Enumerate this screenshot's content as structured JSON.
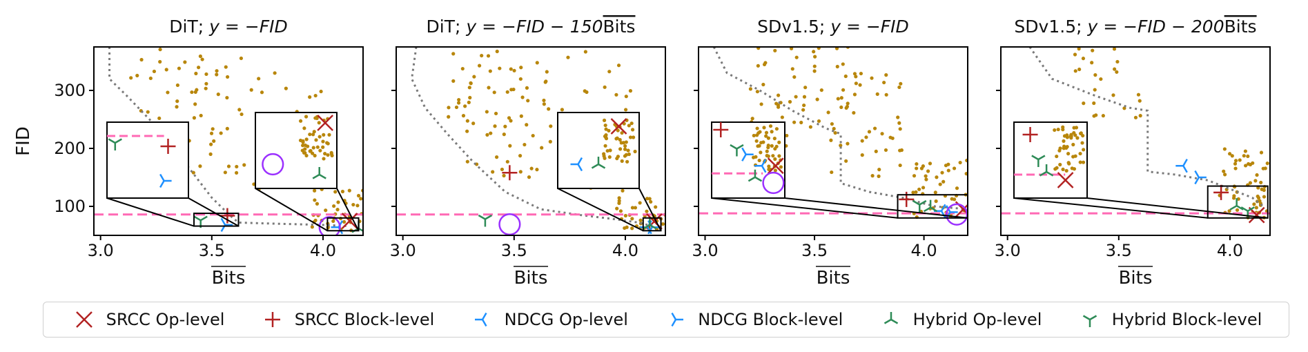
{
  "colors": {
    "scatter": "#b8860b",
    "frontier": "#7a7a7a",
    "fp_line": "#ff69b4",
    "srcc": "#b22222",
    "ndcg": "#1e90ff",
    "hybrid": "#2e8b57",
    "circle": "#9b30ff"
  },
  "legend": {
    "placement": "bottom",
    "items": [
      {
        "label": "SRCC Op-level",
        "marker": "x",
        "color": "#b22222"
      },
      {
        "label": "SRCC Block-level",
        "marker": "plus",
        "color": "#b22222"
      },
      {
        "label": "NDCG Op-level",
        "marker": "tri-left",
        "color": "#1e90ff"
      },
      {
        "label": "NDCG Block-level",
        "marker": "tri-right",
        "color": "#1e90ff"
      },
      {
        "label": "Hybrid Op-level",
        "marker": "tri-up",
        "color": "#2e8b57"
      },
      {
        "label": "Hybrid Block-level",
        "marker": "tri-down",
        "color": "#2e8b57"
      }
    ]
  },
  "chart_data": [
    {
      "type": "scatter",
      "title_plain": "DiT; ",
      "title_math": "y = −FID",
      "title_bar": "",
      "xlabel": "Bits",
      "ylabel": "FID",
      "xlim": [
        2.97,
        4.18
      ],
      "ylim": [
        50,
        375
      ],
      "xticks": [
        3.0,
        3.5,
        4.0
      ],
      "yticks": [
        100,
        200,
        300
      ],
      "grid": false,
      "fp_y": 86,
      "frontier": [
        [
          3.04,
          375
        ],
        [
          3.04,
          320
        ],
        [
          3.12,
          290
        ],
        [
          3.22,
          250
        ],
        [
          3.32,
          205
        ],
        [
          3.42,
          155
        ],
        [
          3.5,
          115
        ],
        [
          3.58,
          85
        ],
        [
          3.62,
          72
        ],
        [
          3.8,
          70
        ],
        [
          4.0,
          68
        ],
        [
          4.12,
          66
        ]
      ],
      "markers": [
        {
          "kind": "x",
          "x": 4.12,
          "y": 75,
          "series": "SRCC Op-level"
        },
        {
          "kind": "plus",
          "x": 3.57,
          "y": 84,
          "series": "SRCC Block-level"
        },
        {
          "kind": "tri-left",
          "x": 4.07,
          "y": 64,
          "series": "NDCG Op-level"
        },
        {
          "kind": "tri-right",
          "x": 3.56,
          "y": 68,
          "series": "NDCG Block-level"
        },
        {
          "kind": "tri-up",
          "x": 4.16,
          "y": 62,
          "series": "Hybrid Op-level"
        },
        {
          "kind": "tri-down",
          "x": 3.45,
          "y": 76,
          "series": "Hybrid Block-level"
        },
        {
          "kind": "circle",
          "x": 4.03,
          "y": 64,
          "series": ""
        }
      ],
      "scatter_regions": [
        [
          3.1,
          3.65,
          150,
          375,
          70
        ],
        [
          3.65,
          4.0,
          120,
          360,
          25
        ],
        [
          3.95,
          4.18,
          58,
          130,
          40
        ]
      ],
      "insets": [
        {
          "xlim": [
            3.42,
            3.62
          ],
          "ylim": [
            66,
            88
          ],
          "markers": [
            {
              "kind": "tri-down",
              "x": 3.44,
              "y": 82
            },
            {
              "kind": "plus",
              "x": 3.57,
              "y": 81
            },
            {
              "kind": "tri-right",
              "x": 3.56,
              "y": 71
            }
          ],
          "fp_y": 84,
          "scatter": false
        },
        {
          "xlim": [
            4.02,
            4.16
          ],
          "ylim": [
            58,
            80
          ],
          "markers": [
            {
              "kind": "x",
              "x": 4.14,
              "y": 77
            },
            {
              "kind": "circle",
              "x": 4.05,
              "y": 65
            },
            {
              "kind": "tri-up",
              "x": 4.13,
              "y": 62
            }
          ],
          "fp_y": null,
          "scatter": true
        }
      ]
    },
    {
      "type": "scatter",
      "title_plain": "DiT; ",
      "title_math": "y = −FID − 150",
      "title_bar": "Bits",
      "xlabel": "Bits",
      "ylabel": "",
      "xlim": [
        2.97,
        4.18
      ],
      "ylim": [
        50,
        375
      ],
      "xticks": [
        3.0,
        3.5,
        4.0
      ],
      "yticks": [
        100,
        200,
        300
      ],
      "grid": false,
      "fp_y": 86,
      "frontier": [
        [
          3.06,
          375
        ],
        [
          3.04,
          320
        ],
        [
          3.1,
          270
        ],
        [
          3.2,
          225
        ],
        [
          3.32,
          175
        ],
        [
          3.46,
          125
        ],
        [
          3.62,
          95
        ],
        [
          3.8,
          85
        ],
        [
          3.95,
          78
        ],
        [
          4.06,
          72
        ],
        [
          4.12,
          66
        ]
      ],
      "markers": [
        {
          "kind": "x",
          "x": 4.13,
          "y": 74,
          "series": "SRCC Op-level"
        },
        {
          "kind": "plus",
          "x": 3.48,
          "y": 158,
          "series": "SRCC Block-level"
        },
        {
          "kind": "tri-left",
          "x": 4.1,
          "y": 64,
          "series": "NDCG Op-level"
        },
        {
          "kind": "tri-right",
          "x": 4.12,
          "y": 64,
          "series": "NDCG Block-level"
        },
        {
          "kind": "tri-up",
          "x": 4.11,
          "y": 68,
          "series": "Hybrid Op-level"
        },
        {
          "kind": "tri-down",
          "x": 3.37,
          "y": 78,
          "series": "Hybrid Block-level"
        },
        {
          "kind": "circle",
          "x": 3.48,
          "y": 69,
          "series": ""
        }
      ],
      "scatter_regions": [
        [
          3.2,
          3.75,
          150,
          375,
          75
        ],
        [
          3.7,
          4.05,
          110,
          370,
          30
        ],
        [
          3.95,
          4.18,
          58,
          130,
          35
        ]
      ],
      "insets": [
        {
          "xlim": [
            4.08,
            4.16
          ],
          "ylim": [
            58,
            80
          ],
          "markers": [
            {
              "kind": "x",
              "x": 4.14,
              "y": 76
            },
            {
              "kind": "tri-left",
              "x": 4.1,
              "y": 65
            },
            {
              "kind": "tri-up",
              "x": 4.12,
              "y": 65
            }
          ],
          "fp_y": null,
          "scatter": true
        }
      ]
    },
    {
      "type": "scatter",
      "title_plain": "SDv1.5; ",
      "title_math": "y = −FID",
      "title_bar": "",
      "xlabel": "Bits",
      "ylabel": "",
      "xlim": [
        2.97,
        4.2
      ],
      "ylim": [
        50,
        375
      ],
      "xticks": [
        3.0,
        3.5,
        4.0
      ],
      "yticks": [
        100,
        200,
        300
      ],
      "grid": false,
      "fp_y": 88,
      "frontier": [
        [
          3.04,
          375
        ],
        [
          3.1,
          330
        ],
        [
          3.25,
          300
        ],
        [
          3.4,
          265
        ],
        [
          3.55,
          235
        ],
        [
          3.62,
          225
        ],
        [
          3.62,
          140
        ],
        [
          3.75,
          125
        ],
        [
          3.9,
          115
        ],
        [
          4.05,
          100
        ],
        [
          4.2,
          95
        ]
      ],
      "markers": [
        {
          "kind": "x",
          "x": 4.18,
          "y": 95,
          "series": "SRCC Op-level"
        },
        {
          "kind": "plus",
          "x": 3.92,
          "y": 112,
          "series": "SRCC Block-level"
        },
        {
          "kind": "tri-left",
          "x": 4.08,
          "y": 92,
          "series": "NDCG Op-level"
        },
        {
          "kind": "tri-right",
          "x": 4.12,
          "y": 90,
          "series": "NDCG Block-level"
        },
        {
          "kind": "tri-up",
          "x": 4.03,
          "y": 98,
          "series": "Hybrid Op-level"
        },
        {
          "kind": "tri-down",
          "x": 3.98,
          "y": 103,
          "series": "Hybrid Block-level"
        },
        {
          "kind": "circle",
          "x": 4.15,
          "y": 86,
          "series": ""
        }
      ],
      "scatter_regions": [
        [
          3.2,
          3.7,
          200,
          375,
          60
        ],
        [
          3.55,
          3.9,
          150,
          330,
          40
        ],
        [
          3.95,
          4.2,
          80,
          180,
          45
        ]
      ],
      "insets": [
        {
          "xlim": [
            3.88,
            4.2
          ],
          "ylim": [
            80,
            120
          ],
          "markers": [
            {
              "kind": "plus",
              "x": 3.92,
              "y": 116
            },
            {
              "kind": "tri-down",
              "x": 3.99,
              "y": 106
            },
            {
              "kind": "tri-right",
              "x": 4.03,
              "y": 103
            },
            {
              "kind": "x",
              "x": 4.16,
              "y": 97
            },
            {
              "kind": "circle",
              "x": 4.15,
              "y": 88
            },
            {
              "kind": "tri-up",
              "x": 4.07,
              "y": 91
            },
            {
              "kind": "tri-left",
              "x": 4.1,
              "y": 97
            }
          ],
          "fp_y": 93,
          "scatter": true
        }
      ]
    },
    {
      "type": "scatter",
      "title_plain": "SDv1.5; ",
      "title_math": "y = −FID − 200",
      "title_bar": "Bits",
      "xlabel": "Bits",
      "ylabel": "",
      "xlim": [
        2.97,
        4.18
      ],
      "ylim": [
        50,
        375
      ],
      "xticks": [
        3.0,
        3.5,
        4.0
      ],
      "yticks": [
        100,
        200,
        300
      ],
      "grid": false,
      "fp_y": 88,
      "frontier": [
        [
          3.1,
          375
        ],
        [
          3.2,
          320
        ],
        [
          3.4,
          290
        ],
        [
          3.55,
          270
        ],
        [
          3.63,
          265
        ],
        [
          3.63,
          160
        ],
        [
          3.75,
          155
        ],
        [
          3.9,
          145
        ],
        [
          4.0,
          130
        ],
        [
          4.1,
          115
        ],
        [
          4.15,
          100
        ]
      ],
      "markers": [
        {
          "kind": "x",
          "x": 4.12,
          "y": 85,
          "series": "SRCC Op-level"
        },
        {
          "kind": "plus",
          "x": 3.96,
          "y": 124,
          "series": "SRCC Block-level"
        },
        {
          "kind": "tri-left",
          "x": 3.79,
          "y": 170,
          "series": "NDCG Op-level"
        },
        {
          "kind": "tri-right",
          "x": 3.86,
          "y": 150,
          "series": "NDCG Block-level"
        },
        {
          "kind": "tri-up",
          "x": 4.03,
          "y": 101,
          "series": "Hybrid Op-level"
        },
        {
          "kind": "tri-down",
          "x": 4.08,
          "y": 92,
          "series": "Hybrid Block-level"
        }
      ],
      "scatter_regions": [
        [
          3.3,
          3.6,
          250,
          375,
          25
        ],
        [
          3.95,
          4.18,
          80,
          200,
          55
        ]
      ],
      "insets": [
        {
          "xlim": [
            3.9,
            4.17
          ],
          "ylim": [
            80,
            135
          ],
          "markers": [
            {
              "kind": "plus",
              "x": 3.96,
              "y": 126
            },
            {
              "kind": "tri-down",
              "x": 3.99,
              "y": 108
            },
            {
              "kind": "tri-up",
              "x": 4.02,
              "y": 99
            },
            {
              "kind": "x",
              "x": 4.09,
              "y": 93
            }
          ],
          "fp_y": 97,
          "scatter": true
        }
      ]
    }
  ]
}
